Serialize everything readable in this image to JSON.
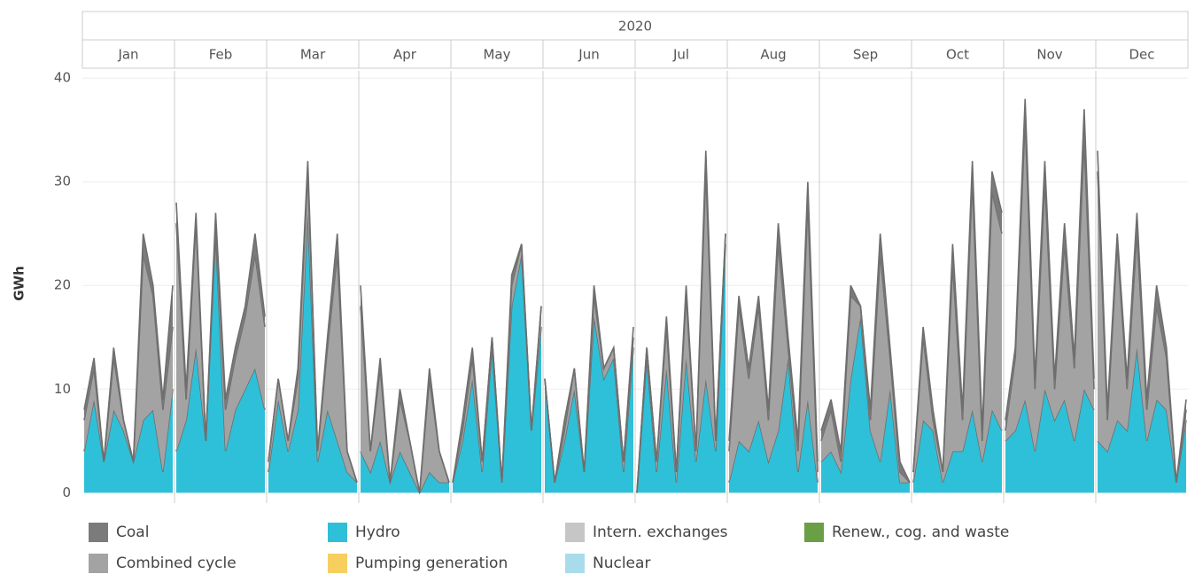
{
  "chart_data": {
    "type": "area",
    "stacked": true,
    "header": "2020",
    "categories": [
      "Jan",
      "Feb",
      "Mar",
      "Apr",
      "May",
      "Jun",
      "Jul",
      "Aug",
      "Sep",
      "Oct",
      "Nov",
      "Dec"
    ],
    "ylabel": "GWh",
    "ylim": [
      -1,
      40.7
    ],
    "yticks": [
      0,
      10,
      20,
      30,
      40
    ],
    "grid": true,
    "series": [
      {
        "name": "Hydro",
        "color": "#2ec0d8",
        "values": [
          [
            4,
            9,
            3,
            8,
            6,
            3,
            7,
            8,
            2,
            10
          ],
          [
            4,
            7,
            14,
            5,
            25,
            4,
            8,
            10,
            12,
            8
          ],
          [
            2,
            9,
            4,
            8,
            27,
            3,
            8,
            5,
            2,
            1
          ],
          [
            4,
            2,
            5,
            1,
            4,
            2,
            0,
            2,
            1,
            1
          ],
          [
            1,
            5,
            11,
            2,
            14,
            1,
            18,
            23,
            6,
            16
          ],
          [
            11,
            1,
            5,
            10,
            2,
            17,
            11,
            13,
            2,
            14
          ],
          [
            0,
            13,
            2,
            12,
            1,
            13,
            3,
            11,
            4,
            24
          ],
          [
            1,
            5,
            4,
            7,
            3,
            6,
            13,
            2,
            9,
            1
          ],
          [
            3,
            4,
            2,
            11,
            17,
            6,
            3,
            10,
            1,
            1
          ],
          [
            1,
            7,
            6,
            1,
            4,
            4,
            8,
            3,
            8,
            6
          ],
          [
            5,
            6,
            9,
            4,
            10,
            7,
            9,
            5,
            10,
            8
          ],
          [
            5,
            4,
            7,
            6,
            14,
            5,
            9,
            8,
            1,
            7
          ]
        ]
      },
      {
        "name": "Combined cycle",
        "color": "#a3a3a3",
        "values": [
          [
            3,
            3,
            0,
            5,
            1,
            0,
            16,
            11,
            6,
            6
          ],
          [
            22,
            2,
            12,
            0,
            1,
            4,
            5,
            7,
            11,
            8
          ],
          [
            1,
            2,
            1,
            3,
            4,
            1,
            6,
            18,
            2,
            0
          ],
          [
            14,
            2,
            7,
            0,
            5,
            3,
            0,
            9,
            3,
            0
          ],
          [
            0,
            1,
            2,
            1,
            1,
            0,
            2,
            1,
            0,
            2
          ],
          [
            0,
            0,
            1,
            2,
            0,
            2,
            1,
            1,
            1,
            1
          ],
          [
            0,
            1,
            1,
            4,
            1,
            6,
            1,
            20,
            1,
            1
          ],
          [
            3,
            13,
            7,
            11,
            4,
            18,
            1,
            2,
            19,
            1
          ],
          [
            2,
            4,
            1,
            8,
            1,
            1,
            20,
            3,
            1,
            0
          ],
          [
            1,
            8,
            1,
            1,
            18,
            3,
            22,
            2,
            21,
            19
          ],
          [
            1,
            7,
            27,
            6,
            20,
            3,
            15,
            7,
            24,
            2
          ],
          [
            26,
            3,
            17,
            4,
            11,
            3,
            9,
            5,
            0,
            1
          ]
        ]
      },
      {
        "name": "Coal",
        "color": "#7b7b7b",
        "values": [
          [
            1,
            1,
            0,
            1,
            0,
            0,
            2,
            1,
            1,
            4
          ],
          [
            2,
            1,
            1,
            0,
            1,
            1,
            1,
            1,
            2,
            1
          ],
          [
            0,
            0,
            0,
            1,
            1,
            0,
            1,
            2,
            0,
            0
          ],
          [
            2,
            0,
            1,
            0,
            1,
            0,
            0,
            1,
            0,
            0
          ],
          [
            0,
            1,
            1,
            0,
            0,
            0,
            1,
            0,
            0,
            0
          ],
          [
            0,
            0,
            1,
            0,
            0,
            1,
            0,
            0,
            0,
            1
          ],
          [
            0,
            0,
            0,
            1,
            0,
            1,
            0,
            2,
            0,
            0
          ],
          [
            1,
            1,
            1,
            1,
            1,
            2,
            1,
            1,
            2,
            1
          ],
          [
            1,
            1,
            1,
            1,
            0,
            1,
            2,
            1,
            1,
            0
          ],
          [
            0,
            1,
            1,
            0,
            2,
            1,
            2,
            1,
            2,
            2
          ],
          [
            1,
            1,
            2,
            1,
            2,
            1,
            2,
            1,
            3,
            1
          ],
          [
            2,
            1,
            1,
            1,
            2,
            1,
            2,
            1,
            0,
            1
          ]
        ]
      },
      {
        "name": "Pumping generation",
        "color": "#f6cf5f"
      },
      {
        "name": "Intern. exchanges",
        "color": "#c6c6c6"
      },
      {
        "name": "Nuclear",
        "color": "#a9dceb"
      },
      {
        "name": "Renew., cog. and waste",
        "color": "#6a9f45"
      }
    ],
    "legend_order": [
      2,
      1,
      0,
      3,
      4,
      5,
      6
    ]
  }
}
